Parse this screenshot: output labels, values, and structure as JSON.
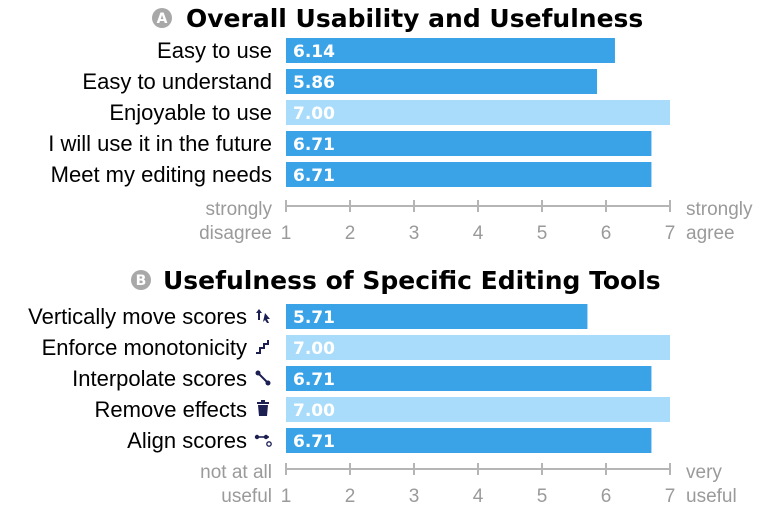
{
  "colors": {
    "bar_dark": "#3aa3e8",
    "bar_light": "#a8dcfa",
    "axis": "#b5b5b5",
    "tick_text": "#9a9a9a",
    "badge": "#a8a8a8",
    "icon": "#1c1f52"
  },
  "chart_data": [
    {
      "type": "bar",
      "orientation": "horizontal",
      "badge": "A",
      "title": "Overall Usability and Usefulness",
      "categories": [
        "Easy to use",
        "Easy to understand",
        "Enjoyable to use",
        "I will use it in the future",
        "Meet my editing needs"
      ],
      "values": [
        6.14,
        5.86,
        7.0,
        6.71,
        6.71
      ],
      "value_labels": [
        "6.14",
        "5.86",
        "7.00",
        "6.71",
        "6.71"
      ],
      "highlight": [
        false,
        false,
        true,
        false,
        false
      ],
      "icons": [],
      "xlim": [
        1,
        7
      ],
      "ticks": [
        "1",
        "2",
        "3",
        "4",
        "5",
        "6",
        "7"
      ],
      "low_label": [
        "strongly",
        "disagree"
      ],
      "high_label": [
        "strongly",
        "agree"
      ]
    },
    {
      "type": "bar",
      "orientation": "horizontal",
      "badge": "B",
      "title": "Usefulness of Specific Editing Tools",
      "categories": [
        "Vertically move scores",
        "Enforce monotonicity",
        "Interpolate scores",
        "Remove effects",
        "Align scores"
      ],
      "values": [
        5.71,
        7.0,
        6.71,
        7.0,
        6.71
      ],
      "value_labels": [
        "5.71",
        "7.00",
        "6.71",
        "7.00",
        "6.71"
      ],
      "highlight": [
        false,
        true,
        false,
        true,
        false
      ],
      "icons": [
        "move-vertical-icon",
        "monotonic-icon",
        "interpolate-icon",
        "trash-icon",
        "align-icon"
      ],
      "xlim": [
        1,
        7
      ],
      "ticks": [
        "1",
        "2",
        "3",
        "4",
        "5",
        "6",
        "7"
      ],
      "low_label": [
        "not at all",
        "useful"
      ],
      "high_label": [
        "very",
        "useful"
      ]
    }
  ]
}
